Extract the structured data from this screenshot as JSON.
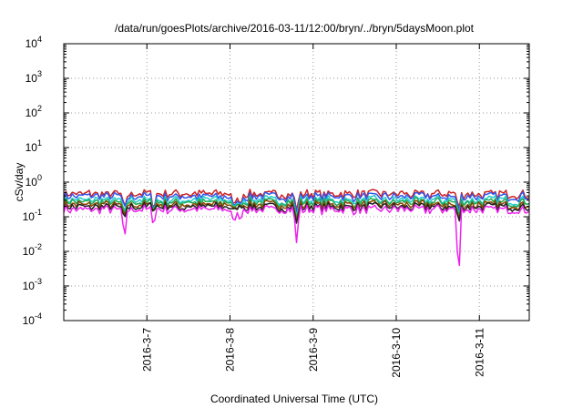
{
  "chart_data": {
    "type": "line",
    "title": "/data/run/goesPlots/archive/2016-03-11/12:00/bryn/../bryn/5daysMoon.plot",
    "xlabel": "Coordinated Universal Time (UTC)",
    "ylabel": "cSv/day",
    "yscale": "log",
    "ylim_exp": [
      -4,
      4
    ],
    "y_ticks": [
      {
        "base": "10",
        "exp": "-4",
        "value": -4
      },
      {
        "base": "10",
        "exp": "-3",
        "value": -3
      },
      {
        "base": "10",
        "exp": "-2",
        "value": -2
      },
      {
        "base": "10",
        "exp": "-1",
        "value": -1
      },
      {
        "base": "10",
        "exp": "0",
        "value": 0
      },
      {
        "base": "10",
        "exp": "1",
        "value": 1
      },
      {
        "base": "10",
        "exp": "2",
        "value": 2
      },
      {
        "base": "10",
        "exp": "3",
        "value": 3
      },
      {
        "base": "10",
        "exp": "4",
        "value": 4
      }
    ],
    "xlim_days": [
      6.0,
      11.6
    ],
    "x_ticks": [
      {
        "label": "2016-3-7",
        "value": 7
      },
      {
        "label": "2016-3-8",
        "value": 8
      },
      {
        "label": "2016-3-9",
        "value": 9
      },
      {
        "label": "2016-3-10",
        "value": 10
      },
      {
        "label": "2016-3-11",
        "value": 11
      }
    ],
    "grid": true,
    "series": [
      {
        "color": "#cc2222",
        "base": 0.45
      },
      {
        "color": "#3355ee",
        "base": 0.38
      },
      {
        "color": "#22cccc",
        "base": 0.3
      },
      {
        "color": "#22aa55",
        "base": 0.26
      },
      {
        "color": "#884400",
        "base": 0.22
      },
      {
        "color": "#222222",
        "base": 0.19
      },
      {
        "color": "#ee22ee",
        "base": 0.16
      }
    ],
    "dips": [
      {
        "day": 6.73,
        "min": 0.018
      },
      {
        "day": 7.08,
        "min": 0.05
      },
      {
        "day": 8.05,
        "min": 0.05
      },
      {
        "day": 8.12,
        "min": 0.07
      },
      {
        "day": 8.8,
        "min": 0.018
      },
      {
        "day": 10.75,
        "min": 0.0009
      }
    ]
  }
}
